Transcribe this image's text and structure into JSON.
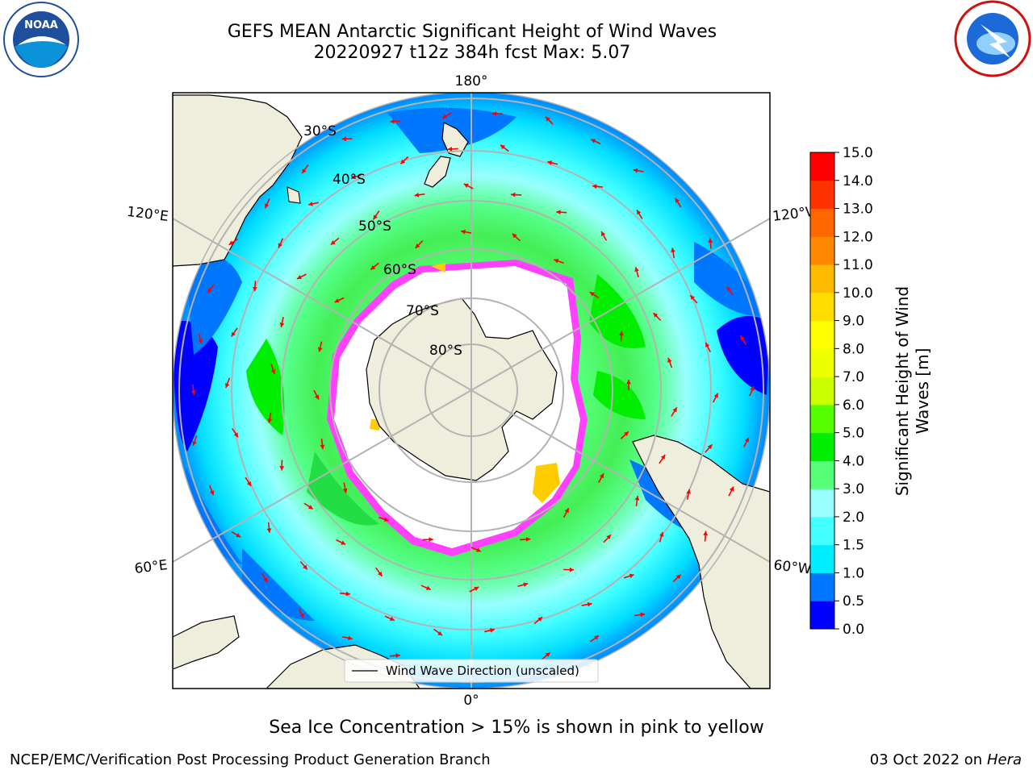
{
  "title": {
    "line1": "GEFS MEAN Antarctic Significant Height of Wind Waves",
    "line2": "20220927 t12z 384h fcst   Max: 5.07"
  },
  "logos": {
    "left": {
      "icon": "noaa-logo",
      "text": "NOAA",
      "ring_text": "NATIONAL OCEANIC AND ATMOSPHERIC ADMINISTRATION · U.S. DEPARTMENT OF COMMERCE"
    },
    "right": {
      "icon": "national-weather-service-logo",
      "ring_text": "NATIONAL WEATHER SERVICE"
    }
  },
  "map": {
    "projection": "south-polar-stereographic",
    "longitude_labels": {
      "top": "180°",
      "bottom": "0°",
      "left_upper": "120°E",
      "left_lower": "60°E",
      "right_upper": "120°W",
      "right_lower": "60°W"
    },
    "latitude_labels": [
      "30°S",
      "40°S",
      "50°S",
      "60°S",
      "70°S",
      "80°S"
    ],
    "legend": "Wind Wave Direction (unscaled)",
    "colors": {
      "land": "#efeedc",
      "ice_interior": "#ffffff",
      "ice_edge": "#ff40ff",
      "arrow": "#ff0000",
      "grid": "#b3b3b3"
    }
  },
  "colorbar": {
    "label_line1": "Significant Height of Wind",
    "label_line2": "Waves [m]",
    "ticks": [
      "0.0",
      "0.5",
      "1.0",
      "1.5",
      "2.0",
      "3.0",
      "4.0",
      "5.0",
      "6.0",
      "7.0",
      "8.0",
      "9.0",
      "10.0",
      "11.0",
      "12.0",
      "13.0",
      "14.0",
      "15.0"
    ],
    "colors": [
      "#0000ff",
      "#0077ff",
      "#00eeff",
      "#44ffff",
      "#99ffff",
      "#55ff77",
      "#00ee00",
      "#55ff00",
      "#ccff00",
      "#eeff00",
      "#ffff00",
      "#ffdd00",
      "#ffbb00",
      "#ff8800",
      "#ff6600",
      "#ff3300",
      "#ff0000"
    ]
  },
  "footer": {
    "note": "Sea Ice Concentration > 15% is shown in pink to yellow",
    "left": "NCEP/EMC/Verification Post Processing Product Generation Branch",
    "right_date": "03 Oct 2022 on ",
    "right_host": "Hera"
  }
}
